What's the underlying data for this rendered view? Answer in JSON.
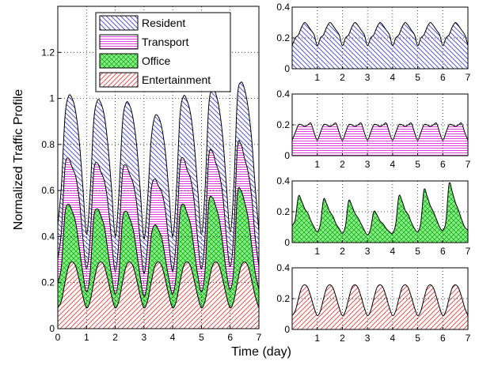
{
  "figure": {
    "xlabel": "Time (day)",
    "ylabel": "Normalized Traffic Profile"
  },
  "colors": {
    "resident": "#5a5ad2",
    "transport": "#e040e0",
    "office": "#22b022",
    "entertainment": "#e05a5a",
    "resident_bg": "#ffffff",
    "transport_bg": "#ffffff",
    "office_bg": "#86f086",
    "entertainment_bg": "#ffffff"
  },
  "chart_data": [
    {
      "type": "area",
      "stacked": true,
      "xlabel": "Time (day)",
      "ylabel": "Normalized Traffic Profile",
      "xlim": [
        0,
        7
      ],
      "ylim": [
        0,
        1.4
      ],
      "xticks": [
        0,
        1,
        2,
        3,
        4,
        5,
        6,
        7
      ],
      "yticks": [
        0,
        0.2,
        0.4,
        0.6,
        0.8,
        1,
        1.2
      ],
      "grid": true,
      "legend_position": "top-right",
      "x": [
        0,
        0.125,
        0.25,
        0.375,
        0.5,
        0.625,
        0.75,
        0.875,
        1,
        1.125,
        1.25,
        1.375,
        1.5,
        1.625,
        1.75,
        1.875,
        2,
        2.125,
        2.25,
        2.375,
        2.5,
        2.625,
        2.75,
        2.875,
        3,
        3.125,
        3.25,
        3.375,
        3.5,
        3.625,
        3.75,
        3.875,
        4,
        4.125,
        4.25,
        4.375,
        4.5,
        4.625,
        4.75,
        4.875,
        5,
        5.125,
        5.25,
        5.375,
        5.5,
        5.625,
        5.75,
        5.875,
        6,
        6.125,
        6.25,
        6.375,
        6.5,
        6.625,
        6.75,
        6.875,
        7
      ],
      "series": [
        {
          "name": "Entertainment",
          "values": [
            0.09,
            0.12,
            0.2,
            0.27,
            0.29,
            0.27,
            0.21,
            0.14,
            0.09,
            0.12,
            0.2,
            0.27,
            0.29,
            0.27,
            0.21,
            0.14,
            0.09,
            0.12,
            0.2,
            0.27,
            0.29,
            0.27,
            0.21,
            0.14,
            0.09,
            0.12,
            0.2,
            0.27,
            0.29,
            0.27,
            0.21,
            0.14,
            0.09,
            0.12,
            0.2,
            0.27,
            0.29,
            0.27,
            0.21,
            0.14,
            0.09,
            0.12,
            0.2,
            0.27,
            0.29,
            0.27,
            0.21,
            0.14,
            0.09,
            0.12,
            0.2,
            0.27,
            0.29,
            0.27,
            0.21,
            0.14,
            0.09
          ]
        },
        {
          "name": "Office",
          "values": [
            0.11,
            0.15,
            0.3,
            0.27,
            0.22,
            0.19,
            0.14,
            0.1,
            0.07,
            0.12,
            0.28,
            0.25,
            0.2,
            0.17,
            0.12,
            0.09,
            0.06,
            0.11,
            0.27,
            0.24,
            0.19,
            0.16,
            0.12,
            0.08,
            0.05,
            0.09,
            0.2,
            0.18,
            0.14,
            0.12,
            0.09,
            0.07,
            0.06,
            0.12,
            0.3,
            0.27,
            0.21,
            0.18,
            0.13,
            0.09,
            0.07,
            0.13,
            0.34,
            0.3,
            0.24,
            0.2,
            0.15,
            0.1,
            0.08,
            0.14,
            0.38,
            0.33,
            0.26,
            0.21,
            0.15,
            0.1,
            0.08
          ]
        },
        {
          "name": "Transport",
          "values": [
            0.1,
            0.15,
            0.2,
            0.2,
            0.19,
            0.2,
            0.21,
            0.15,
            0.1,
            0.15,
            0.2,
            0.2,
            0.19,
            0.2,
            0.21,
            0.15,
            0.1,
            0.15,
            0.2,
            0.2,
            0.19,
            0.2,
            0.21,
            0.15,
            0.1,
            0.15,
            0.2,
            0.2,
            0.19,
            0.2,
            0.21,
            0.15,
            0.1,
            0.15,
            0.2,
            0.2,
            0.19,
            0.2,
            0.21,
            0.15,
            0.1,
            0.15,
            0.2,
            0.2,
            0.19,
            0.2,
            0.21,
            0.15,
            0.1,
            0.15,
            0.2,
            0.2,
            0.19,
            0.2,
            0.21,
            0.15,
            0.1
          ]
        },
        {
          "name": "Resident",
          "values": [
            0.15,
            0.2,
            0.22,
            0.27,
            0.3,
            0.28,
            0.25,
            0.22,
            0.15,
            0.2,
            0.22,
            0.27,
            0.3,
            0.28,
            0.25,
            0.22,
            0.15,
            0.2,
            0.22,
            0.27,
            0.3,
            0.28,
            0.25,
            0.22,
            0.15,
            0.2,
            0.22,
            0.27,
            0.3,
            0.28,
            0.25,
            0.22,
            0.15,
            0.2,
            0.22,
            0.27,
            0.3,
            0.28,
            0.25,
            0.22,
            0.15,
            0.2,
            0.22,
            0.27,
            0.3,
            0.28,
            0.25,
            0.22,
            0.15,
            0.2,
            0.22,
            0.27,
            0.3,
            0.28,
            0.25,
            0.22,
            0.15
          ]
        }
      ]
    },
    {
      "type": "area",
      "series_ref": "Resident",
      "xlim": [
        0,
        7
      ],
      "ylim": [
        0,
        0.4
      ],
      "xticks": [
        1,
        2,
        3,
        4,
        5,
        6,
        7
      ],
      "yticks": [
        0,
        0.2,
        0.4
      ],
      "grid": true
    },
    {
      "type": "area",
      "series_ref": "Transport",
      "xlim": [
        0,
        7
      ],
      "ylim": [
        0,
        0.4
      ],
      "xticks": [
        1,
        2,
        3,
        4,
        5,
        6,
        7
      ],
      "yticks": [
        0,
        0.2,
        0.4
      ],
      "grid": true
    },
    {
      "type": "area",
      "series_ref": "Office",
      "xlim": [
        0,
        7
      ],
      "ylim": [
        0,
        0.4
      ],
      "xticks": [
        1,
        2,
        3,
        4,
        5,
        6,
        7
      ],
      "yticks": [
        0,
        0.2,
        0.4
      ],
      "grid": true
    },
    {
      "type": "area",
      "series_ref": "Entertainment",
      "xlim": [
        0,
        7
      ],
      "ylim": [
        0,
        0.4
      ],
      "xticks": [
        1,
        2,
        3,
        4,
        5,
        6,
        7
      ],
      "yticks": [
        0,
        0.2,
        0.4
      ],
      "grid": true
    }
  ]
}
